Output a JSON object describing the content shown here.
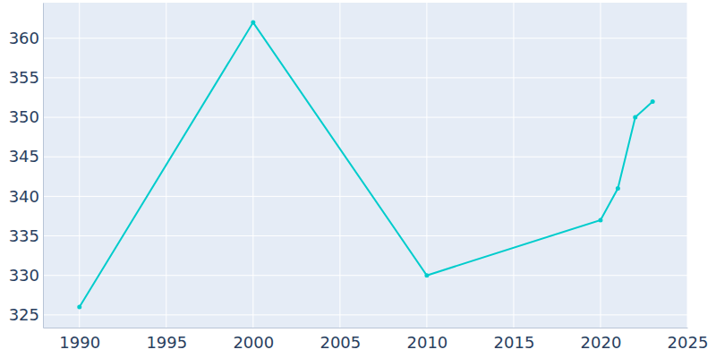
{
  "chart_data": {
    "type": "line",
    "x": [
      1990,
      2000,
      2010,
      2020,
      2021,
      2022,
      2023
    ],
    "values": [
      326,
      362,
      330,
      337,
      341,
      350,
      352
    ],
    "color": "#00cccc",
    "marker": "circle",
    "line_style": "solid",
    "xlim": [
      1987.9,
      2025
    ],
    "ylim": [
      323.4,
      364.5
    ],
    "xticks": [
      1990,
      1995,
      2000,
      2005,
      2010,
      2015,
      2020,
      2025
    ],
    "yticks": [
      325,
      330,
      335,
      340,
      345,
      350,
      355,
      360
    ],
    "grid": true
  }
}
